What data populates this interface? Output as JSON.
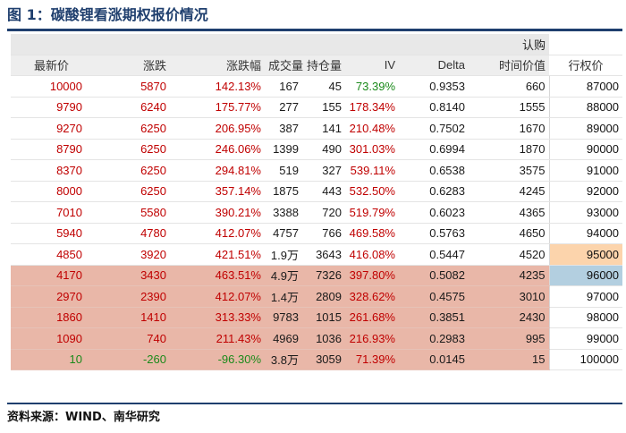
{
  "title": "图 1：碳酸锂看涨期权报价情况",
  "source": "资料来源：WIND、南华研究",
  "colors": {
    "title": "#1f3f6e",
    "red": "#c00000",
    "green": "#1b8a1b",
    "highlight_rows": "#e9b7a8",
    "strike_peach": "#fcd4ac",
    "strike_blue": "#b3cfe0"
  },
  "table": {
    "group_header": "认购",
    "columns": [
      "最新价",
      "涨跌",
      "涨跌幅",
      "成交量",
      "持仓量",
      "IV",
      "Delta",
      "时间价值",
      "行权价"
    ],
    "rows": [
      {
        "cells": [
          "10000",
          "5870",
          "142.13%",
          "167",
          "45",
          "73.39%",
          "0.9353",
          "660",
          "87000"
        ],
        "colors": [
          "red",
          "red",
          "red",
          "black",
          "black",
          "green",
          "black",
          "black",
          "black"
        ],
        "highlight": false,
        "strike_fill": ""
      },
      {
        "cells": [
          "9790",
          "6240",
          "175.77%",
          "277",
          "155",
          "178.34%",
          "0.8140",
          "1555",
          "88000"
        ],
        "colors": [
          "red",
          "red",
          "red",
          "black",
          "black",
          "red",
          "black",
          "black",
          "black"
        ],
        "highlight": false,
        "strike_fill": ""
      },
      {
        "cells": [
          "9270",
          "6250",
          "206.95%",
          "387",
          "141",
          "210.48%",
          "0.7502",
          "1670",
          "89000"
        ],
        "colors": [
          "red",
          "red",
          "red",
          "black",
          "black",
          "red",
          "black",
          "black",
          "black"
        ],
        "highlight": false,
        "strike_fill": ""
      },
      {
        "cells": [
          "8790",
          "6250",
          "246.06%",
          "1399",
          "490",
          "301.03%",
          "0.6994",
          "1870",
          "90000"
        ],
        "colors": [
          "red",
          "red",
          "red",
          "black",
          "black",
          "red",
          "black",
          "black",
          "black"
        ],
        "highlight": false,
        "strike_fill": ""
      },
      {
        "cells": [
          "8370",
          "6250",
          "294.81%",
          "519",
          "327",
          "539.11%",
          "0.6538",
          "3575",
          "91000"
        ],
        "colors": [
          "red",
          "red",
          "red",
          "black",
          "black",
          "red",
          "black",
          "black",
          "black"
        ],
        "highlight": false,
        "strike_fill": ""
      },
      {
        "cells": [
          "8000",
          "6250",
          "357.14%",
          "1875",
          "443",
          "532.50%",
          "0.6283",
          "4245",
          "92000"
        ],
        "colors": [
          "red",
          "red",
          "red",
          "black",
          "black",
          "red",
          "black",
          "black",
          "black"
        ],
        "highlight": false,
        "strike_fill": ""
      },
      {
        "cells": [
          "7010",
          "5580",
          "390.21%",
          "3388",
          "720",
          "519.79%",
          "0.6023",
          "4365",
          "93000"
        ],
        "colors": [
          "red",
          "red",
          "red",
          "black",
          "black",
          "red",
          "black",
          "black",
          "black"
        ],
        "highlight": false,
        "strike_fill": ""
      },
      {
        "cells": [
          "5940",
          "4780",
          "412.07%",
          "4757",
          "766",
          "469.58%",
          "0.5763",
          "4650",
          "94000"
        ],
        "colors": [
          "red",
          "red",
          "red",
          "black",
          "black",
          "red",
          "black",
          "black",
          "black"
        ],
        "highlight": false,
        "strike_fill": ""
      },
      {
        "cells": [
          "4850",
          "3920",
          "421.51%",
          "1.9万",
          "3643",
          "416.08%",
          "0.5447",
          "4520",
          "95000"
        ],
        "colors": [
          "red",
          "red",
          "red",
          "black",
          "black",
          "red",
          "black",
          "black",
          "black"
        ],
        "highlight": false,
        "strike_fill": "peach"
      },
      {
        "cells": [
          "4170",
          "3430",
          "463.51%",
          "4.9万",
          "7326",
          "397.80%",
          "0.5082",
          "4235",
          "96000"
        ],
        "colors": [
          "red",
          "red",
          "red",
          "black",
          "black",
          "red",
          "black",
          "black",
          "black"
        ],
        "highlight": true,
        "strike_fill": "blue"
      },
      {
        "cells": [
          "2970",
          "2390",
          "412.07%",
          "1.4万",
          "2809",
          "328.62%",
          "0.4575",
          "3010",
          "97000"
        ],
        "colors": [
          "red",
          "red",
          "red",
          "black",
          "black",
          "red",
          "black",
          "black",
          "black"
        ],
        "highlight": true,
        "strike_fill": ""
      },
      {
        "cells": [
          "1860",
          "1410",
          "313.33%",
          "9783",
          "1015",
          "261.68%",
          "0.3851",
          "2430",
          "98000"
        ],
        "colors": [
          "red",
          "red",
          "red",
          "black",
          "black",
          "red",
          "black",
          "black",
          "black"
        ],
        "highlight": true,
        "strike_fill": ""
      },
      {
        "cells": [
          "1090",
          "740",
          "211.43%",
          "4969",
          "1036",
          "216.93%",
          "0.2983",
          "995",
          "99000"
        ],
        "colors": [
          "red",
          "red",
          "red",
          "black",
          "black",
          "red",
          "black",
          "black",
          "black"
        ],
        "highlight": true,
        "strike_fill": ""
      },
      {
        "cells": [
          "10",
          "-260",
          "-96.30%",
          "3.8万",
          "3059",
          "71.39%",
          "0.0145",
          "15",
          "100000"
        ],
        "colors": [
          "green",
          "green",
          "green",
          "black",
          "black",
          "red",
          "black",
          "black",
          "black"
        ],
        "highlight": true,
        "strike_fill": ""
      }
    ]
  }
}
